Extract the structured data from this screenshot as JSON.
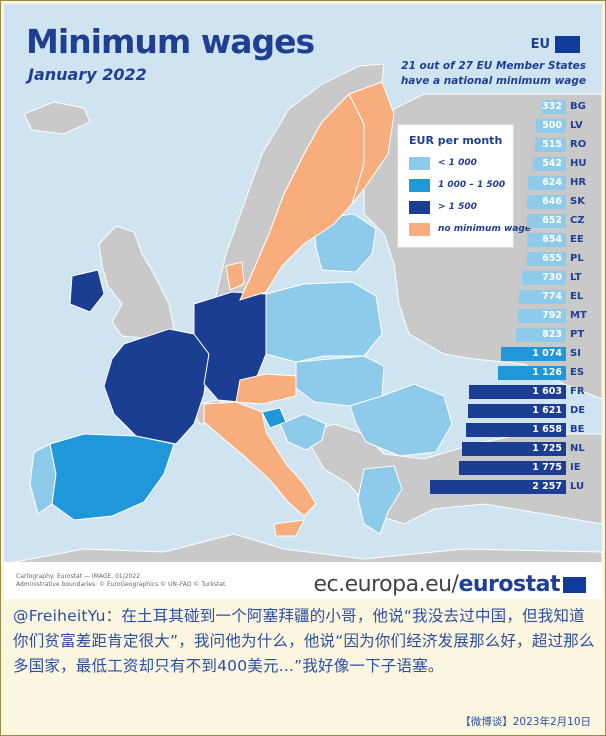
{
  "map": {
    "title": "Minimum wages",
    "subtitle": "January 2022",
    "eu_badge": "EU",
    "note_line1": "21 out of 27 EU Member States",
    "note_line2": "have a national minimum wage",
    "legend": {
      "title": "EUR per month",
      "items": [
        {
          "label": "< 1 000",
          "color": "#8ecbeb"
        },
        {
          "label": "1 000 – 1 500",
          "color": "#1f97d9"
        },
        {
          "label": "> 1 500",
          "color": "#1b3d92"
        },
        {
          "label": "no minimum wage",
          "color": "#f8ad7d"
        }
      ]
    },
    "bars": [
      {
        "code": "BG",
        "value": "332",
        "num": 332,
        "tier": "low"
      },
      {
        "code": "LV",
        "value": "500",
        "num": 500,
        "tier": "low"
      },
      {
        "code": "RO",
        "value": "515",
        "num": 515,
        "tier": "low"
      },
      {
        "code": "HU",
        "value": "542",
        "num": 542,
        "tier": "low"
      },
      {
        "code": "HR",
        "value": "624",
        "num": 624,
        "tier": "low"
      },
      {
        "code": "SK",
        "value": "646",
        "num": 646,
        "tier": "low"
      },
      {
        "code": "CZ",
        "value": "652",
        "num": 652,
        "tier": "low"
      },
      {
        "code": "EE",
        "value": "654",
        "num": 654,
        "tier": "low"
      },
      {
        "code": "PL",
        "value": "655",
        "num": 655,
        "tier": "low"
      },
      {
        "code": "LT",
        "value": "730",
        "num": 730,
        "tier": "low"
      },
      {
        "code": "EL",
        "value": "774",
        "num": 774,
        "tier": "low"
      },
      {
        "code": "MT",
        "value": "792",
        "num": 792,
        "tier": "low"
      },
      {
        "code": "PT",
        "value": "823",
        "num": 823,
        "tier": "low"
      },
      {
        "code": "SI",
        "value": "1 074",
        "num": 1074,
        "tier": "mid"
      },
      {
        "code": "ES",
        "value": "1 126",
        "num": 1126,
        "tier": "mid"
      },
      {
        "code": "FR",
        "value": "1 603",
        "num": 1603,
        "tier": "high"
      },
      {
        "code": "DE",
        "value": "1 621",
        "num": 1621,
        "tier": "high"
      },
      {
        "code": "BE",
        "value": "1 658",
        "num": 1658,
        "tier": "high"
      },
      {
        "code": "NL",
        "value": "1 725",
        "num": 1725,
        "tier": "high"
      },
      {
        "code": "IE",
        "value": "1 775",
        "num": 1775,
        "tier": "high"
      },
      {
        "code": "LU",
        "value": "2 257",
        "num": 2257,
        "tier": "high"
      }
    ],
    "tier_colors": {
      "low": "#8ecbeb",
      "mid": "#1f97d9",
      "high": "#1b3d92"
    },
    "credit_line1": "Cartography: Eurostat — IMAGE, 01/2022",
    "credit_line2": "Administrative boundaries: © EuroGeographics © UN–FAO © Turkstat",
    "brand_left": "ec.europa.eu/",
    "brand_right": "eurostat"
  },
  "post": {
    "user": "@FreiheitYu",
    "text": "：在土耳其碰到一个阿塞拜疆的小哥，他说“我没去过中国，但我知道你们贫富差距肯定很大”，我问他为什么，他说“因为你们经济发展那么好，超过那么多国家，最低工资却只有不到400美元...”我好像一下子语塞。",
    "meta": "【微博谈】2023年2月10日"
  }
}
